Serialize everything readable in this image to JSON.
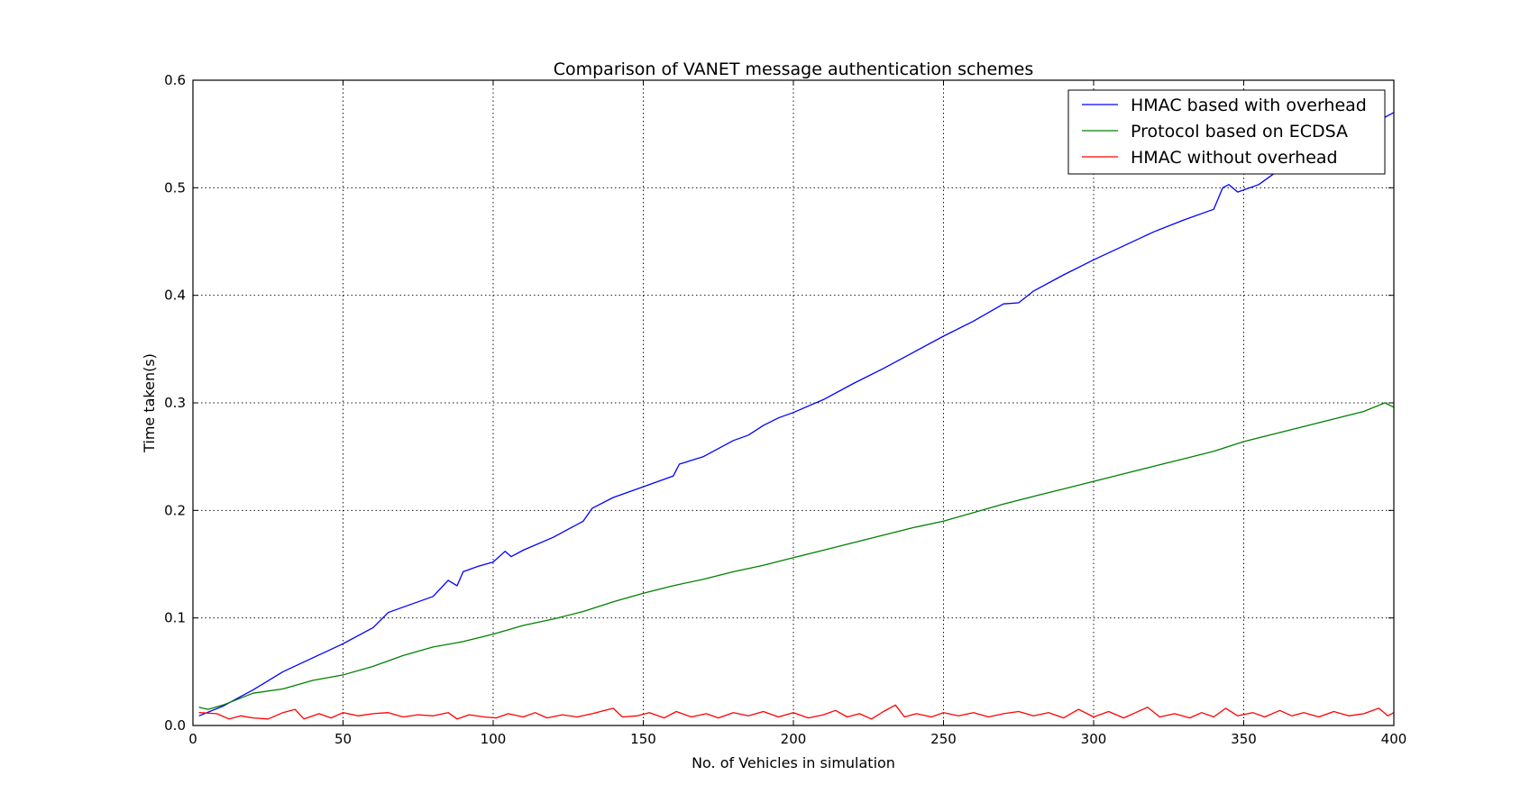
{
  "chart_data": {
    "type": "line",
    "title": "Comparison of VANET message authentication schemes",
    "xlabel": "No. of Vehicles in simulation",
    "ylabel": "Time taken(s)",
    "xlim": [
      0,
      400
    ],
    "ylim": [
      0,
      0.6
    ],
    "xticks": [
      0,
      50,
      100,
      150,
      200,
      250,
      300,
      350,
      400
    ],
    "yticks": [
      0.0,
      0.1,
      0.2,
      0.3,
      0.4,
      0.5,
      0.6
    ],
    "grid": true,
    "legend_position": "top-right",
    "series": [
      {
        "name": "HMAC based with overhead",
        "color": "#0000ff",
        "points": [
          [
            2,
            0.009
          ],
          [
            10,
            0.018
          ],
          [
            20,
            0.033
          ],
          [
            30,
            0.05
          ],
          [
            40,
            0.063
          ],
          [
            50,
            0.076
          ],
          [
            60,
            0.091
          ],
          [
            65,
            0.105
          ],
          [
            70,
            0.11
          ],
          [
            80,
            0.12
          ],
          [
            85,
            0.135
          ],
          [
            88,
            0.13
          ],
          [
            90,
            0.143
          ],
          [
            95,
            0.148
          ],
          [
            100,
            0.152
          ],
          [
            104,
            0.162
          ],
          [
            106,
            0.157
          ],
          [
            110,
            0.163
          ],
          [
            120,
            0.175
          ],
          [
            130,
            0.19
          ],
          [
            133,
            0.202
          ],
          [
            140,
            0.212
          ],
          [
            150,
            0.222
          ],
          [
            160,
            0.232
          ],
          [
            162,
            0.243
          ],
          [
            170,
            0.25
          ],
          [
            180,
            0.265
          ],
          [
            185,
            0.27
          ],
          [
            190,
            0.279
          ],
          [
            195,
            0.286
          ],
          [
            200,
            0.291
          ],
          [
            210,
            0.303
          ],
          [
            220,
            0.318
          ],
          [
            230,
            0.332
          ],
          [
            240,
            0.347
          ],
          [
            250,
            0.362
          ],
          [
            260,
            0.376
          ],
          [
            270,
            0.392
          ],
          [
            275,
            0.393
          ],
          [
            280,
            0.404
          ],
          [
            290,
            0.419
          ],
          [
            300,
            0.433
          ],
          [
            310,
            0.446
          ],
          [
            320,
            0.459
          ],
          [
            330,
            0.47
          ],
          [
            340,
            0.48
          ],
          [
            343,
            0.5
          ],
          [
            345,
            0.503
          ],
          [
            348,
            0.496
          ],
          [
            355,
            0.503
          ],
          [
            360,
            0.513
          ],
          [
            370,
            0.53
          ],
          [
            380,
            0.545
          ],
          [
            390,
            0.555
          ],
          [
            400,
            0.57
          ]
        ]
      },
      {
        "name": "Protocol based on ECDSA",
        "color": "#008000",
        "points": [
          [
            2,
            0.017
          ],
          [
            5,
            0.015
          ],
          [
            10,
            0.019
          ],
          [
            20,
            0.03
          ],
          [
            30,
            0.034
          ],
          [
            40,
            0.042
          ],
          [
            50,
            0.047
          ],
          [
            60,
            0.055
          ],
          [
            70,
            0.065
          ],
          [
            80,
            0.073
          ],
          [
            90,
            0.078
          ],
          [
            100,
            0.085
          ],
          [
            110,
            0.093
          ],
          [
            120,
            0.099
          ],
          [
            130,
            0.106
          ],
          [
            140,
            0.115
          ],
          [
            150,
            0.123
          ],
          [
            160,
            0.13
          ],
          [
            170,
            0.136
          ],
          [
            180,
            0.143
          ],
          [
            190,
            0.149
          ],
          [
            200,
            0.156
          ],
          [
            210,
            0.163
          ],
          [
            220,
            0.17
          ],
          [
            230,
            0.177
          ],
          [
            240,
            0.184
          ],
          [
            250,
            0.19
          ],
          [
            260,
            0.198
          ],
          [
            270,
            0.206
          ],
          [
            280,
            0.213
          ],
          [
            290,
            0.22
          ],
          [
            300,
            0.227
          ],
          [
            310,
            0.234
          ],
          [
            320,
            0.241
          ],
          [
            330,
            0.248
          ],
          [
            340,
            0.255
          ],
          [
            350,
            0.264
          ],
          [
            360,
            0.271
          ],
          [
            370,
            0.278
          ],
          [
            380,
            0.285
          ],
          [
            390,
            0.292
          ],
          [
            397,
            0.3
          ],
          [
            400,
            0.296
          ]
        ]
      },
      {
        "name": "HMAC without overhead",
        "color": "#ff0000",
        "points": [
          [
            2,
            0.012
          ],
          [
            8,
            0.011
          ],
          [
            12,
            0.006
          ],
          [
            16,
            0.009
          ],
          [
            20,
            0.007
          ],
          [
            25,
            0.006
          ],
          [
            30,
            0.012
          ],
          [
            34,
            0.015
          ],
          [
            37,
            0.006
          ],
          [
            42,
            0.011
          ],
          [
            46,
            0.007
          ],
          [
            50,
            0.012
          ],
          [
            55,
            0.009
          ],
          [
            60,
            0.011
          ],
          [
            65,
            0.012
          ],
          [
            70,
            0.008
          ],
          [
            75,
            0.01
          ],
          [
            80,
            0.009
          ],
          [
            85,
            0.012
          ],
          [
            88,
            0.006
          ],
          [
            92,
            0.01
          ],
          [
            97,
            0.008
          ],
          [
            101,
            0.007
          ],
          [
            105,
            0.011
          ],
          [
            110,
            0.008
          ],
          [
            114,
            0.012
          ],
          [
            118,
            0.007
          ],
          [
            123,
            0.01
          ],
          [
            128,
            0.008
          ],
          [
            133,
            0.011
          ],
          [
            140,
            0.016
          ],
          [
            143,
            0.008
          ],
          [
            148,
            0.009
          ],
          [
            152,
            0.012
          ],
          [
            157,
            0.007
          ],
          [
            161,
            0.013
          ],
          [
            166,
            0.008
          ],
          [
            171,
            0.011
          ],
          [
            175,
            0.007
          ],
          [
            180,
            0.012
          ],
          [
            185,
            0.009
          ],
          [
            190,
            0.013
          ],
          [
            195,
            0.008
          ],
          [
            200,
            0.012
          ],
          [
            205,
            0.007
          ],
          [
            210,
            0.01
          ],
          [
            214,
            0.014
          ],
          [
            218,
            0.008
          ],
          [
            222,
            0.011
          ],
          [
            226,
            0.006
          ],
          [
            230,
            0.013
          ],
          [
            234,
            0.019
          ],
          [
            237,
            0.008
          ],
          [
            241,
            0.011
          ],
          [
            246,
            0.008
          ],
          [
            250,
            0.012
          ],
          [
            255,
            0.009
          ],
          [
            260,
            0.012
          ],
          [
            265,
            0.008
          ],
          [
            270,
            0.011
          ],
          [
            275,
            0.013
          ],
          [
            280,
            0.009
          ],
          [
            285,
            0.012
          ],
          [
            290,
            0.007
          ],
          [
            295,
            0.015
          ],
          [
            300,
            0.008
          ],
          [
            305,
            0.013
          ],
          [
            310,
            0.007
          ],
          [
            314,
            0.012
          ],
          [
            318,
            0.017
          ],
          [
            322,
            0.008
          ],
          [
            327,
            0.011
          ],
          [
            332,
            0.007
          ],
          [
            336,
            0.012
          ],
          [
            340,
            0.008
          ],
          [
            344,
            0.016
          ],
          [
            348,
            0.009
          ],
          [
            353,
            0.012
          ],
          [
            357,
            0.008
          ],
          [
            362,
            0.014
          ],
          [
            366,
            0.009
          ],
          [
            370,
            0.012
          ],
          [
            375,
            0.008
          ],
          [
            380,
            0.013
          ],
          [
            385,
            0.009
          ],
          [
            390,
            0.011
          ],
          [
            395,
            0.016
          ],
          [
            398,
            0.009
          ],
          [
            400,
            0.012
          ]
        ]
      }
    ]
  }
}
